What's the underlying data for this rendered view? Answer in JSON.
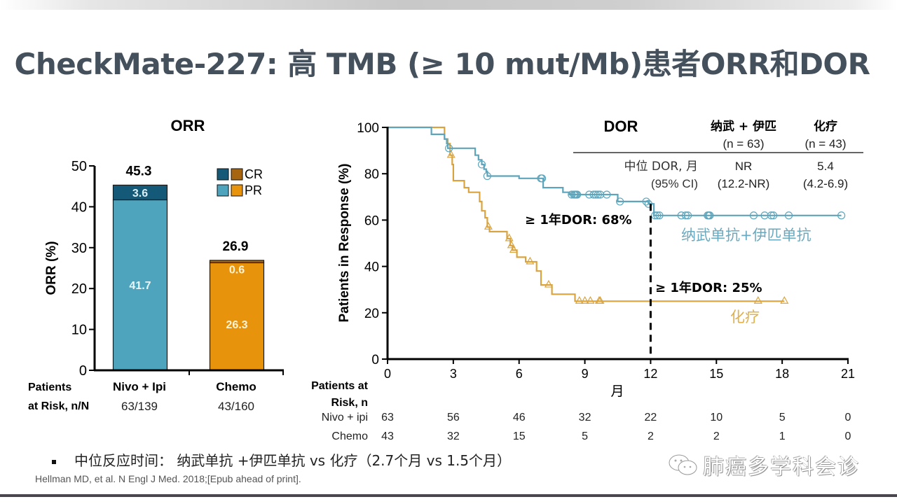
{
  "slide": {
    "title": "CheckMate-227: 高 TMB (≥ 10 mut/Mb)患者ORR和DOR",
    "bullet": "中位反应时间： 纳武单抗 +伊匹单抗 vs 化疗（2.7个月 vs 1.5个月）",
    "citation": "Hellman MD, et al. N Engl J Med. 2018;[Epub ahead of print].",
    "watermark": "肺癌多学科会诊",
    "watermark_icon": "wechat-icon"
  },
  "colors": {
    "nivo_pr": "#4ea3bd",
    "nivo_cr": "#145a78",
    "chemo_pr": "#e8930c",
    "chemo_cr": "#a8650f",
    "km_nivo": "#5ea5bb",
    "km_chemo": "#d9a440",
    "title": "#44505c"
  },
  "chart_data": [
    {
      "type": "bar",
      "title": "ORR",
      "ylabel": "ORR (%)",
      "xlabel": "",
      "ylim": [
        0,
        50
      ],
      "yticks": [
        0,
        10,
        20,
        30,
        40,
        50
      ],
      "categories": [
        "Nivo + Ipi",
        "Chemo"
      ],
      "stacked": true,
      "series": [
        {
          "name": "PR",
          "values": [
            41.7,
            26.3
          ],
          "labels": [
            "41.7",
            "26.3"
          ]
        },
        {
          "name": "CR",
          "values": [
            3.6,
            0.6
          ],
          "labels": [
            "3.6",
            "0.6"
          ]
        }
      ],
      "totals": [
        "45.3",
        "26.9"
      ],
      "legend": {
        "position": "top-right",
        "entries": [
          "CR",
          "PR"
        ]
      },
      "patients_at_risk": {
        "label_line1": "Patients",
        "label_line2": "at Risk, n/N",
        "values": [
          "63/139",
          "43/160"
        ]
      }
    },
    {
      "type": "line",
      "subtype": "kaplan-meier",
      "title": "DOR",
      "xlabel": "月",
      "ylabel": "Patients in Response (%)",
      "xlim": [
        0,
        21
      ],
      "ylim": [
        0,
        100
      ],
      "xticks": [
        0,
        3,
        6,
        9,
        12,
        15,
        18,
        21
      ],
      "yticks": [
        0,
        20,
        40,
        60,
        80,
        100
      ],
      "reference_line": {
        "x": 12,
        "style": "dashed"
      },
      "series": [
        {
          "name": "纳武单抗 + 伊匹单抗",
          "steps": [
            [
              0,
              100
            ],
            [
              2.0,
              100
            ],
            [
              2.0,
              97
            ],
            [
              2.6,
              97
            ],
            [
              2.6,
              95
            ],
            [
              2.7,
              95
            ],
            [
              2.7,
              93
            ],
            [
              2.75,
              93
            ],
            [
              2.75,
              91
            ],
            [
              4.0,
              91
            ],
            [
              4.0,
              88
            ],
            [
              4.15,
              88
            ],
            [
              4.15,
              86
            ],
            [
              4.3,
              86
            ],
            [
              4.3,
              84
            ],
            [
              4.4,
              84
            ],
            [
              4.4,
              82
            ],
            [
              4.5,
              82
            ],
            [
              4.5,
              81
            ],
            [
              4.55,
              81
            ],
            [
              4.55,
              79
            ],
            [
              6.0,
              79
            ],
            [
              6.0,
              78
            ],
            [
              7.1,
              78
            ],
            [
              7.1,
              74
            ],
            [
              8.0,
              74
            ],
            [
              8.0,
              72
            ],
            [
              8.3,
              72
            ],
            [
              8.3,
              71
            ],
            [
              10.5,
              71
            ],
            [
              10.5,
              68
            ],
            [
              11.9,
              68
            ],
            [
              11.9,
              67
            ],
            [
              12.15,
              67
            ],
            [
              12.15,
              62
            ],
            [
              20.7,
              62
            ]
          ],
          "censor": [
            2.8,
            4.3,
            4.55,
            7.0,
            7.05,
            8.4,
            8.5,
            8.55,
            8.6,
            8.65,
            9.2,
            9.4,
            9.5,
            9.6,
            9.7,
            10.0,
            10.6,
            11.8,
            11.9,
            12.2,
            12.3,
            12.4,
            13.4,
            13.6,
            13.7,
            14.6,
            14.65,
            14.7,
            16.7,
            17.2,
            17.5,
            17.6,
            18.3,
            20.7
          ],
          "end_label": "纳武单抗+伊匹单抗",
          "annotation": "≥ 1年DOR: 68%"
        },
        {
          "name": "化疗",
          "steps": [
            [
              0,
              100
            ],
            [
              2.6,
              100
            ],
            [
              2.6,
              95
            ],
            [
              2.75,
              95
            ],
            [
              2.75,
              93
            ],
            [
              2.85,
              93
            ],
            [
              2.85,
              88
            ],
            [
              2.95,
              88
            ],
            [
              2.95,
              84
            ],
            [
              3.0,
              84
            ],
            [
              3.0,
              77
            ],
            [
              3.5,
              77
            ],
            [
              3.5,
              74
            ],
            [
              3.7,
              74
            ],
            [
              3.7,
              72
            ],
            [
              4.2,
              72
            ],
            [
              4.2,
              68
            ],
            [
              4.3,
              68
            ],
            [
              4.3,
              64
            ],
            [
              4.45,
              64
            ],
            [
              4.45,
              61
            ],
            [
              4.55,
              61
            ],
            [
              4.55,
              57
            ],
            [
              4.65,
              57
            ],
            [
              4.65,
              55
            ],
            [
              5.45,
              55
            ],
            [
              5.45,
              52
            ],
            [
              5.6,
              52
            ],
            [
              5.6,
              49
            ],
            [
              5.7,
              49
            ],
            [
              5.7,
              47
            ],
            [
              5.9,
              47
            ],
            [
              5.9,
              44
            ],
            [
              6.3,
              44
            ],
            [
              6.3,
              42
            ],
            [
              6.8,
              42
            ],
            [
              6.8,
              38
            ],
            [
              7.0,
              38
            ],
            [
              7.0,
              32
            ],
            [
              7.5,
              32
            ],
            [
              7.5,
              28
            ],
            [
              8.55,
              28
            ],
            [
              8.55,
              25
            ],
            [
              18.1,
              25
            ]
          ],
          "censor": [
            2.9,
            4.6,
            5.55,
            5.65,
            5.75,
            6.5,
            7.35,
            8.75,
            9.0,
            9.25,
            9.65,
            9.7,
            16.9,
            18.1
          ],
          "end_label": "化疗",
          "annotation": "≥ 1年DOR: 25%"
        }
      ],
      "dor_table": {
        "title": "DOR",
        "columns": [
          {
            "header": "纳武 + 伊匹",
            "n": "(n = 63)"
          },
          {
            "header": "化疗",
            "n": "(n = 43)"
          }
        ],
        "row_label_line1": "中位 DOR, 月",
        "row_label_line2": "(95% CI)",
        "values": [
          {
            "median": "NR",
            "ci": "(12.2-NR)"
          },
          {
            "median": "5.4",
            "ci": "(4.2-6.9)"
          }
        ]
      },
      "patients_at_risk": {
        "label_line1": "Patients at",
        "label_line2": "Risk, n",
        "rows": [
          {
            "name": "Nivo + ipi",
            "values": [
              63,
              56,
              46,
              32,
              22,
              10,
              5,
              0
            ]
          },
          {
            "name": "Chemo",
            "values": [
              43,
              32,
              15,
              5,
              2,
              2,
              1,
              0
            ]
          }
        ]
      }
    }
  ]
}
